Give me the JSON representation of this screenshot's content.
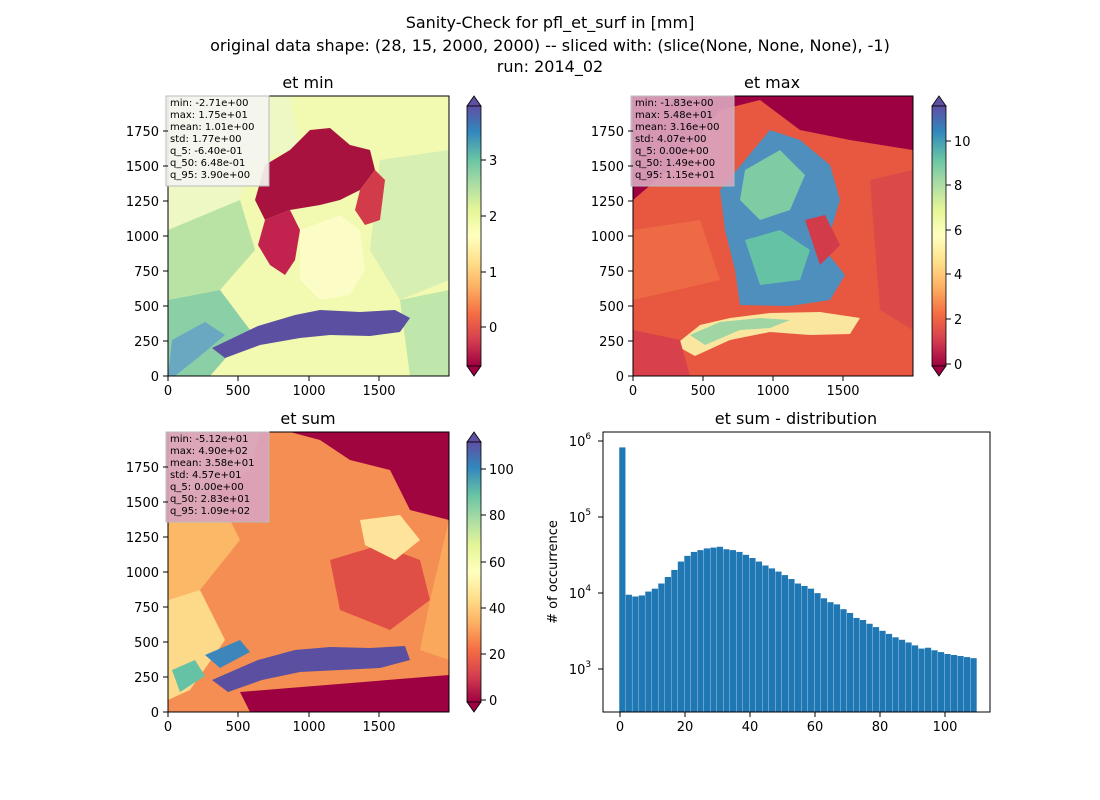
{
  "figure": {
    "title_lines": [
      "Sanity-Check for pfl_et_surf in [mm]",
      "original data shape: (28, 15, 2000, 2000) -- sliced with: (slice(None, None, None), -1)",
      "run: 2014_02"
    ]
  },
  "chart_data": [
    {
      "type": "heatmap",
      "title": "et min",
      "xlim": [
        0,
        2000
      ],
      "ylim": [
        0,
        2000
      ],
      "xticks": [
        "0",
        "500",
        "1000",
        "1500"
      ],
      "yticks": [
        "0",
        "250",
        "500",
        "750",
        "1000",
        "1250",
        "1500",
        "1750"
      ],
      "colorbar": {
        "min": -0.6,
        "max": 3.9,
        "ticks": [
          "0",
          "1",
          "2",
          "3"
        ],
        "extend": "both",
        "colormap": "Spectral"
      },
      "stats": [
        "min: -2.71e+00",
        "max: 1.75e+01",
        "mean: 1.01e+00",
        "std: 1.77e+00",
        "q_5: -6.40e-01",
        "q_50: 6.48e-01",
        "q_95: 3.90e+00"
      ],
      "stats_box_color": "#f4f4f0"
    },
    {
      "type": "heatmap",
      "title": "et max",
      "xlim": [
        0,
        2000
      ],
      "ylim": [
        0,
        2000
      ],
      "xticks": [
        "0",
        "500",
        "1000",
        "1500"
      ],
      "yticks": [
        "0",
        "250",
        "500",
        "750",
        "1000",
        "1250",
        "1500",
        "1750"
      ],
      "colorbar": {
        "min": 0,
        "max": 11.5,
        "ticks": [
          "0",
          "2",
          "4",
          "6",
          "8",
          "10"
        ],
        "extend": "both",
        "colormap": "Spectral"
      },
      "stats": [
        "min: -1.83e+00",
        "max: 5.48e+01",
        "mean: 3.16e+00",
        "std: 4.07e+00",
        "q_5: 0.00e+00",
        "q_50: 1.49e+00",
        "q_95: 1.15e+01"
      ],
      "stats_box_color": "#d9a3bd"
    },
    {
      "type": "heatmap",
      "title": "et sum",
      "xlim": [
        0,
        2000
      ],
      "ylim": [
        0,
        2000
      ],
      "xticks": [
        "0",
        "500",
        "1000",
        "1500"
      ],
      "yticks": [
        "0",
        "250",
        "500",
        "750",
        "1000",
        "1250",
        "1500",
        "1750"
      ],
      "colorbar": {
        "min": -5,
        "max": 110,
        "ticks": [
          "0",
          "20",
          "40",
          "60",
          "80",
          "100"
        ],
        "extend": "both",
        "colormap": "Spectral"
      },
      "stats": [
        "min: -5.12e+01",
        "max: 4.90e+02",
        "mean: 3.58e+01",
        "std: 4.57e+01",
        "q_5: 0.00e+00",
        "q_50: 2.83e+01",
        "q_95: 1.09e+02"
      ],
      "stats_box_color": "#d9a3bd"
    },
    {
      "type": "bar",
      "title": "et sum - distribution",
      "ylabel": "# of occurrence",
      "yscale": "log",
      "xlim": [
        -5,
        114
      ],
      "ylim": [
        300,
        1300000
      ],
      "xticks": [
        "0",
        "20",
        "40",
        "60",
        "80",
        "100"
      ],
      "ytick_exponents": [
        "3",
        "4",
        "5",
        "6"
      ],
      "bar_color": "#1f77b4",
      "x": [
        0,
        2,
        4,
        6,
        8,
        10,
        12,
        14,
        16,
        18,
        20,
        22,
        24,
        26,
        28,
        30,
        32,
        34,
        36,
        38,
        40,
        42,
        44,
        46,
        48,
        50,
        52,
        54,
        56,
        58,
        60,
        62,
        64,
        66,
        68,
        70,
        72,
        74,
        76,
        78,
        80,
        82,
        84,
        86,
        88,
        90,
        92,
        94,
        96,
        98,
        100,
        102,
        104,
        106,
        108
      ],
      "values": [
        820000,
        10000,
        9500,
        9800,
        11000,
        12000,
        14000,
        17000,
        21000,
        27000,
        32000,
        36000,
        38000,
        40000,
        41000,
        42000,
        39000,
        38000,
        36000,
        33000,
        30000,
        27000,
        24000,
        22000,
        20000,
        18000,
        16000,
        14000,
        13000,
        12000,
        10500,
        9000,
        8000,
        7500,
        6500,
        5800,
        5000,
        4700,
        4200,
        3800,
        3400,
        3100,
        2800,
        2600,
        2400,
        2200,
        2000,
        2050,
        1900,
        1800,
        1700,
        1650,
        1600,
        1550,
        1500
      ]
    }
  ]
}
